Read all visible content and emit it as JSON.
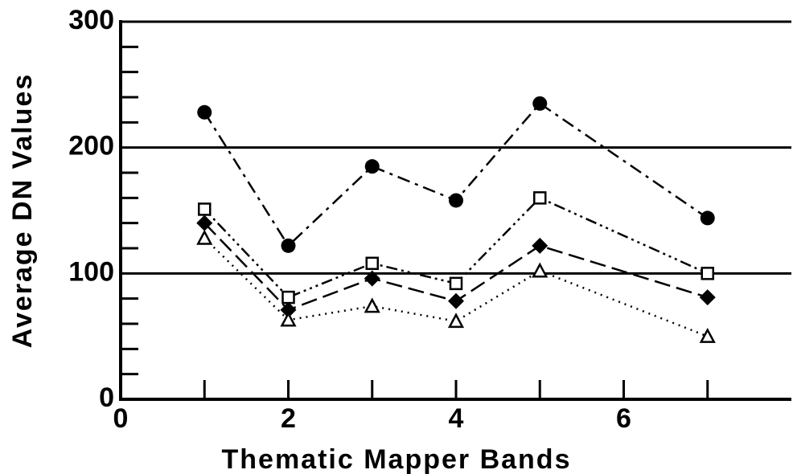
{
  "chart_data": {
    "type": "line",
    "xlabel": "Thematic Mapper Bands",
    "ylabel": "Average DN Values",
    "x": [
      1,
      2,
      3,
      4,
      5,
      7
    ],
    "series": [
      {
        "color": "#000000",
        "marker": "circle",
        "dash": "dash-dot",
        "values": [
          228,
          122,
          185,
          158,
          235,
          144
        ]
      },
      {
        "color": "#000000",
        "marker": "open-square",
        "dash": "dash-dot-dot",
        "values": [
          151,
          81,
          108,
          92,
          160,
          100
        ]
      },
      {
        "color": "#000000",
        "marker": "diamond",
        "dash": "dashed",
        "values": [
          140,
          71,
          96,
          78,
          122,
          81
        ]
      },
      {
        "color": "#000000",
        "marker": "open-triangle",
        "dash": "dotted",
        "values": [
          128,
          63,
          74,
          62,
          102,
          50
        ]
      }
    ],
    "xlim": [
      0,
      8
    ],
    "xticks": [
      0,
      2,
      4,
      6
    ],
    "x_minor_ticks": [
      1,
      2,
      3,
      4,
      5,
      6,
      7
    ],
    "ylim": [
      0,
      300
    ],
    "yticks": [
      0,
      100,
      200,
      300
    ],
    "y_minor_ticks": [
      20,
      40,
      60,
      80,
      120,
      140,
      160,
      180,
      220,
      240,
      260,
      280
    ],
    "grid": true
  }
}
